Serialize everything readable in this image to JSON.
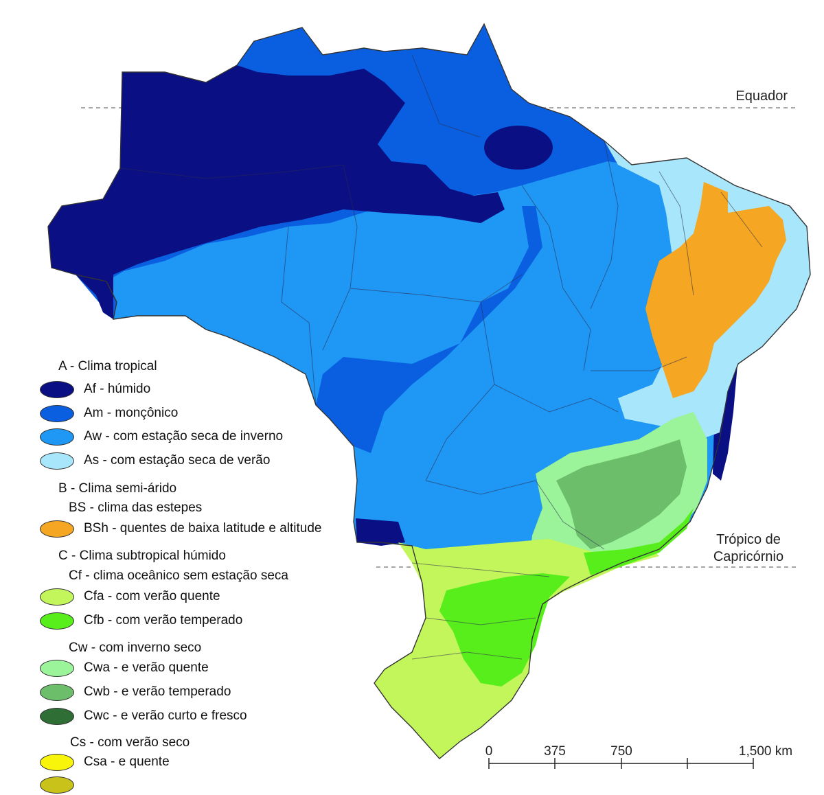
{
  "map": {
    "labels": {
      "equator": "Equador",
      "tropic_line1": "Trópico de",
      "tropic_line2": "Capricórnio"
    },
    "scale": {
      "ticks": [
        "0",
        "375",
        "750",
        "1,500 km"
      ]
    }
  },
  "legend": {
    "group_a": "A - Clima tropical",
    "af": "Af - húmido",
    "am": "Am - monçônico",
    "aw": "Aw - com estação seca de inverno",
    "as": "As - com estação seca de verão",
    "group_b": "B - Clima semi-árido",
    "bs": "BS - clima das estepes",
    "bsh": "BSh - quentes de baixa latitude e altitude",
    "group_c": "C - Clima subtropical húmido",
    "cf": "Cf - clima oceânico sem estação seca",
    "cfa": "Cfa - com verão quente",
    "cfb": "Cfb - com verão temperado",
    "cw": "Cw - com inverno seco",
    "cwa": "Cwa - e verão quente",
    "cwb": "Cwb - e verão temperado",
    "cwc": "Cwc - e verão curto e fresco",
    "cs": "Cs - com verão seco",
    "csa": "Csa -  e quente"
  },
  "colors": {
    "af": "#0a0f84",
    "am": "#0a5fe0",
    "aw": "#1f97f5",
    "as": "#a7e6fb",
    "bsh": "#f5a623",
    "cfa": "#c2f65a",
    "cfb": "#57ee1c",
    "cwa": "#9bf39a",
    "cwb": "#6cbe6b",
    "cwc": "#2f6e35",
    "csa": "#f9f50a",
    "csb": "#c8c21a"
  }
}
